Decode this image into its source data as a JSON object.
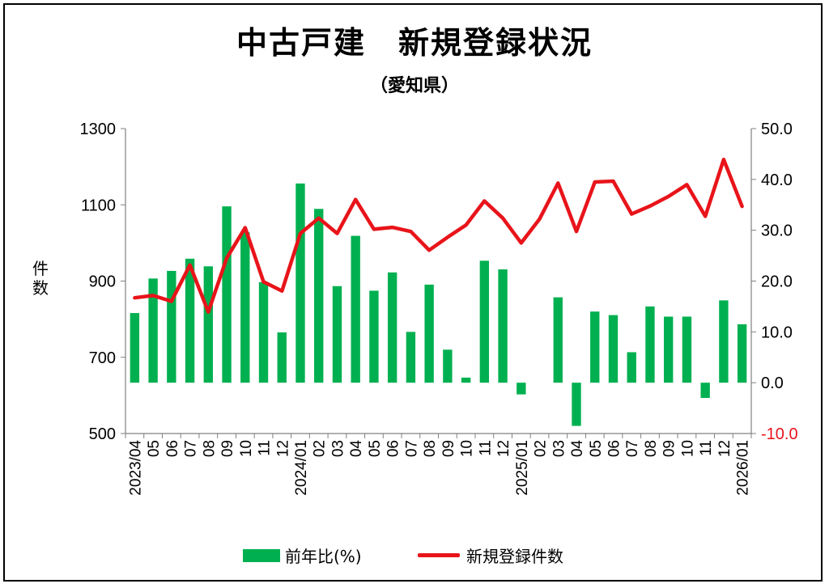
{
  "title": "中古戸建　新規登録状況",
  "subtitle": "（愛知県）",
  "chart_data": {
    "type": "bar+line",
    "ylabel": "件数",
    "ylim_left": [
      500,
      1300
    ],
    "yticks_left": [
      "1300",
      "1100",
      "900",
      "700",
      "500"
    ],
    "ylim_right": [
      -10,
      50
    ],
    "yticks_right": [
      "50.0",
      "40.0",
      "30.0",
      "20.0",
      "10.0",
      "0.0",
      "-10.0"
    ],
    "categories": [
      "2023/04",
      "05",
      "06",
      "07",
      "08",
      "09",
      "10",
      "11",
      "12",
      "2024/01",
      "02",
      "03",
      "04",
      "05",
      "06",
      "07",
      "08",
      "09",
      "10",
      "11",
      "12",
      "2025/01",
      "02",
      "03",
      "04",
      "05",
      "06",
      "07",
      "08",
      "09",
      "10",
      "11",
      "12",
      "2026/01"
    ],
    "series": [
      {
        "name": "前年比(%)",
        "type": "bar",
        "axis": "right",
        "color": "#00b050",
        "values": [
          13.7,
          20.5,
          22.0,
          24.4,
          22.9,
          34.7,
          29.6,
          19.8,
          9.9,
          39.2,
          34.2,
          19.0,
          28.9,
          18.1,
          21.7,
          10.0,
          19.3,
          6.5,
          1.0,
          24.0,
          22.3,
          -2.3,
          0.0,
          16.8,
          -8.5,
          14.0,
          13.3,
          6.0,
          15.0,
          13.0,
          13.0,
          -3.0,
          16.2,
          11.5
        ]
      },
      {
        "name": "新規登録件数",
        "type": "line",
        "axis": "left",
        "color": "#e8141a",
        "values": [
          856,
          862,
          847,
          942,
          819,
          960,
          1040,
          898,
          874,
          1025,
          1065,
          1025,
          1114,
          1036,
          1041,
          1030,
          981,
          1015,
          1047,
          1110,
          1065,
          1000,
          1063,
          1157,
          1030,
          1160,
          1162,
          1076,
          1097,
          1122,
          1153,
          1070,
          1219,
          1096
        ]
      }
    ],
    "legend_position": "bottom",
    "grid": false
  },
  "legend": {
    "bar_label": "前年比(%)",
    "line_label": "新規登録件数"
  },
  "colors": {
    "bar": "#00b050",
    "line": "#e8141a",
    "negative_tick": "#e8141a"
  }
}
